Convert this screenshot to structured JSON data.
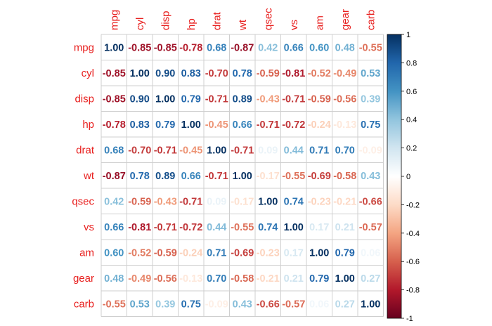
{
  "chart_data": {
    "type": "heatmap",
    "variables": [
      "mpg",
      "cyl",
      "disp",
      "hp",
      "drat",
      "wt",
      "qsec",
      "vs",
      "am",
      "gear",
      "carb"
    ],
    "matrix": [
      [
        "1.00",
        "-0.85",
        "-0.85",
        "-0.78",
        "0.68",
        "-0.87",
        "0.42",
        "0.66",
        "0.60",
        "0.48",
        "-0.55"
      ],
      [
        "-0.85",
        "1.00",
        "0.90",
        "0.83",
        "-0.70",
        "0.78",
        "-0.59",
        "-0.81",
        "-0.52",
        "-0.49",
        "0.53"
      ],
      [
        "-0.85",
        "0.90",
        "1.00",
        "0.79",
        "-0.71",
        "0.89",
        "-0.43",
        "-0.71",
        "-0.59",
        "-0.56",
        "0.39"
      ],
      [
        "-0.78",
        "0.83",
        "0.79",
        "1.00",
        "-0.45",
        "0.66",
        "-0.71",
        "-0.72",
        "-0.24",
        "-0.13",
        "0.75"
      ],
      [
        "0.68",
        "-0.70",
        "-0.71",
        "-0.45",
        "1.00",
        "-0.71",
        "0.09",
        "0.44",
        "0.71",
        "0.70",
        "-0.09"
      ],
      [
        "-0.87",
        "0.78",
        "0.89",
        "0.66",
        "-0.71",
        "1.00",
        "-0.17",
        "-0.55",
        "-0.69",
        "-0.58",
        "0.43"
      ],
      [
        "0.42",
        "-0.59",
        "-0.43",
        "-0.71",
        "0.09",
        "-0.17",
        "1.00",
        "0.74",
        "-0.23",
        "-0.21",
        "-0.66"
      ],
      [
        "0.66",
        "-0.81",
        "-0.71",
        "-0.72",
        "0.44",
        "-0.55",
        "0.74",
        "1.00",
        "0.17",
        "0.21",
        "-0.57"
      ],
      [
        "0.60",
        "-0.52",
        "-0.59",
        "-0.24",
        "0.71",
        "-0.69",
        "-0.23",
        "0.17",
        "1.00",
        "0.79",
        "0.06"
      ],
      [
        "0.48",
        "-0.49",
        "-0.56",
        "-0.13",
        "0.70",
        "-0.58",
        "-0.21",
        "0.21",
        "0.79",
        "1.00",
        "0.27"
      ],
      [
        "-0.55",
        "0.53",
        "0.39",
        "0.75",
        "-0.09",
        "0.43",
        "-0.66",
        "-0.57",
        "0.06",
        "0.27",
        "1.00"
      ]
    ],
    "color_scale": {
      "range": [
        -1,
        1
      ],
      "ticks": [
        "1",
        "0.8",
        "0.6",
        "0.4",
        "0.2",
        "0",
        "-0.2",
        "-0.4",
        "-0.6",
        "-0.8",
        "-1"
      ],
      "stops": [
        "#67001f",
        "#b2182b",
        "#d6604d",
        "#f4a582",
        "#fddbc7",
        "#ffffff",
        "#d1e5f0",
        "#92c5de",
        "#4393c3",
        "#2166ac",
        "#053061"
      ]
    },
    "label_color": "#e8201f",
    "grid_color": "#cfcfcf",
    "legend_placement": "right"
  }
}
